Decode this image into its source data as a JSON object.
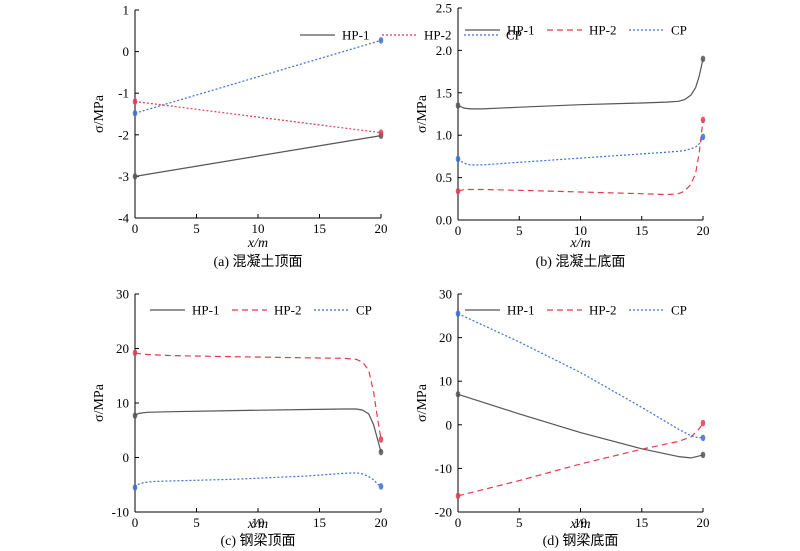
{
  "chart_data": [
    {
      "type": "line",
      "caption": "(a) 混凝土顶面",
      "xlabel": "x/m",
      "ylabel": "σ/MPa",
      "xlim": [
        0,
        20
      ],
      "ylim": [
        -4,
        1
      ],
      "xticks": [
        0,
        5,
        10,
        15,
        20
      ],
      "yticks": [
        -4,
        -3,
        -2,
        -1,
        0,
        1
      ],
      "legend": "top-inside",
      "series": [
        {
          "name": "HP-1",
          "style": "solid",
          "color": "#555555",
          "x": [
            0,
            20
          ],
          "y": [
            -3.0,
            -2.02
          ],
          "end_markers": [
            -3.0,
            -2.02
          ]
        },
        {
          "name": "HP-2",
          "style": "dotted",
          "color": "#e03c50",
          "x": [
            0,
            20
          ],
          "y": [
            -1.2,
            -1.95
          ],
          "end_markers": [
            -1.2,
            -1.95
          ]
        },
        {
          "name": "CP",
          "style": "dotted",
          "color": "#3b6fd4",
          "x": [
            0,
            20
          ],
          "y": [
            -1.48,
            0.27
          ],
          "end_markers": [
            -1.48,
            0.27
          ]
        }
      ]
    },
    {
      "type": "line",
      "caption": "(b) 混凝土底面",
      "xlabel": "x/m",
      "ylabel": "σ/MPa",
      "xlim": [
        0,
        20
      ],
      "ylim": [
        0,
        2.5
      ],
      "xticks": [
        0,
        5,
        10,
        15,
        20
      ],
      "yticks": [
        0,
        0.5,
        1.0,
        1.5,
        2.0,
        2.5
      ],
      "legend": "top-inside",
      "series": [
        {
          "name": "HP-1",
          "style": "solid",
          "color": "#555555",
          "x": [
            0,
            0.5,
            1,
            2,
            5,
            10,
            15,
            17,
            18,
            18.5,
            19,
            19.4,
            19.7,
            20
          ],
          "y": [
            1.35,
            1.32,
            1.31,
            1.31,
            1.33,
            1.36,
            1.38,
            1.39,
            1.4,
            1.42,
            1.47,
            1.56,
            1.7,
            1.9
          ],
          "end_markers": [
            1.35,
            1.9
          ]
        },
        {
          "name": "HP-2",
          "style": "dashed",
          "color": "#e03c50",
          "x": [
            0,
            0.5,
            1,
            2,
            5,
            10,
            15,
            17,
            18,
            18.5,
            19,
            19.4,
            19.7,
            20
          ],
          "y": [
            0.34,
            0.36,
            0.36,
            0.36,
            0.35,
            0.33,
            0.31,
            0.3,
            0.31,
            0.34,
            0.42,
            0.55,
            0.8,
            1.18
          ],
          "end_markers": [
            0.34,
            1.18
          ]
        },
        {
          "name": "CP",
          "style": "dotted",
          "color": "#3b6fd4",
          "x": [
            0,
            0.5,
            1,
            2,
            5,
            10,
            15,
            17,
            18,
            18.5,
            19,
            19.4,
            19.7,
            20
          ],
          "y": [
            0.72,
            0.67,
            0.65,
            0.65,
            0.68,
            0.73,
            0.78,
            0.8,
            0.81,
            0.82,
            0.84,
            0.86,
            0.9,
            0.98
          ],
          "end_markers": [
            0.72,
            0.98
          ]
        }
      ]
    },
    {
      "type": "line",
      "caption": "(c) 钢梁顶面",
      "xlabel": "x/m",
      "ylabel": "σ/MPa",
      "xlim": [
        0,
        20
      ],
      "ylim": [
        -10,
        30
      ],
      "xticks": [
        0,
        5,
        10,
        15,
        20
      ],
      "yticks": [
        -10,
        0,
        10,
        20,
        30
      ],
      "legend": "top-inside",
      "series": [
        {
          "name": "HP-1",
          "style": "solid",
          "color": "#555555",
          "x": [
            0,
            0.3,
            1,
            3,
            8,
            14,
            17,
            18,
            18.5,
            19,
            19.4,
            19.7,
            20
          ],
          "y": [
            7.7,
            8.1,
            8.3,
            8.4,
            8.6,
            8.8,
            8.9,
            8.9,
            8.7,
            8.0,
            6.0,
            3.5,
            1.0
          ],
          "end_markers": [
            7.7,
            1.0
          ]
        },
        {
          "name": "HP-2",
          "style": "dashed",
          "color": "#e03c50",
          "x": [
            0,
            0.5,
            1,
            3,
            8,
            14,
            17,
            18,
            18.5,
            19,
            19.4,
            19.7,
            20
          ],
          "y": [
            19.2,
            19.0,
            18.9,
            18.7,
            18.5,
            18.3,
            18.2,
            18.0,
            17.5,
            16.0,
            12.0,
            7.5,
            3.3
          ],
          "end_markers": [
            19.2,
            3.3
          ]
        },
        {
          "name": "CP",
          "style": "dotted",
          "color": "#3b6fd4",
          "x": [
            0,
            0.3,
            0.7,
            1.5,
            3,
            8,
            14,
            17,
            18,
            18.5,
            19,
            19.4,
            19.7,
            20
          ],
          "y": [
            -5.5,
            -4.9,
            -4.6,
            -4.4,
            -4.3,
            -4.0,
            -3.4,
            -2.9,
            -2.8,
            -3.0,
            -3.5,
            -4.1,
            -4.8,
            -5.3
          ],
          "end_markers": [
            -5.5,
            -5.3
          ]
        }
      ]
    },
    {
      "type": "line",
      "caption": "(d) 钢梁底面",
      "xlabel": "x/m",
      "ylabel": "σ/MPa",
      "xlim": [
        0,
        20
      ],
      "ylim": [
        -20,
        30
      ],
      "xticks": [
        0,
        5,
        10,
        15,
        20
      ],
      "yticks": [
        -20,
        -10,
        0,
        10,
        20,
        30
      ],
      "legend": "top-inside",
      "series": [
        {
          "name": "HP-1",
          "style": "solid",
          "color": "#555555",
          "x": [
            0,
            5,
            10,
            15,
            18,
            19,
            19.5,
            20
          ],
          "y": [
            7.0,
            2.5,
            -1.8,
            -5.5,
            -7.3,
            -7.6,
            -7.3,
            -6.9
          ],
          "end_markers": [
            7.0,
            -6.9
          ]
        },
        {
          "name": "HP-2",
          "style": "dashed",
          "color": "#e03c50",
          "x": [
            0,
            5,
            10,
            15,
            18,
            19,
            19.5,
            19.8,
            20
          ],
          "y": [
            -16.3,
            -12.8,
            -9.0,
            -5.6,
            -3.8,
            -2.8,
            -1.5,
            -0.5,
            0.4
          ],
          "end_markers": [
            -16.3,
            0.4
          ]
        },
        {
          "name": "CP",
          "style": "dotted",
          "color": "#3b6fd4",
          "x": [
            0,
            5,
            10,
            15,
            18,
            19,
            19.5,
            20
          ],
          "y": [
            25.5,
            19.0,
            12.0,
            4.0,
            -1.0,
            -2.5,
            -2.9,
            -3.0
          ],
          "end_markers": [
            25.5,
            -3.0
          ]
        }
      ]
    }
  ]
}
